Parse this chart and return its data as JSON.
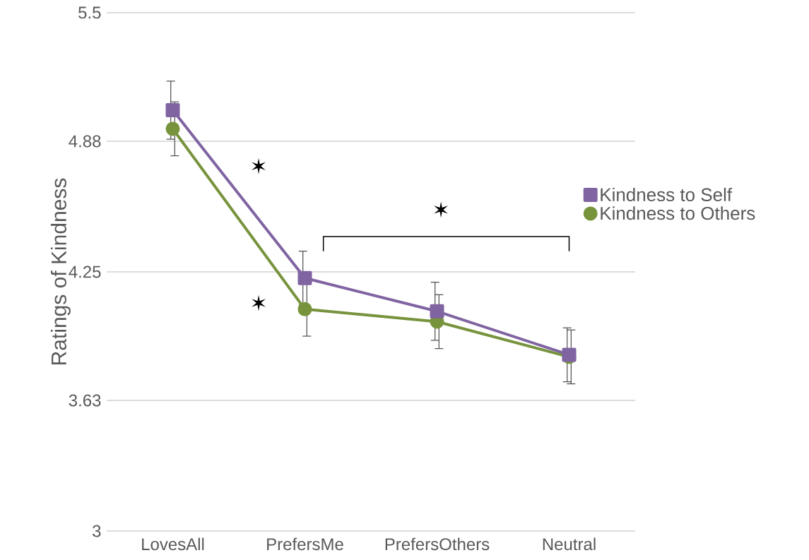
{
  "chart_data": {
    "type": "line",
    "ylabel": "Ratings of Kindness",
    "categories": [
      "LovesAll",
      "PrefersMe",
      "PrefersOthers",
      "Neutral"
    ],
    "series": [
      {
        "name": "Kindness to Self",
        "color": "#8064a2",
        "marker": "square",
        "values": [
          5.03,
          4.22,
          4.06,
          3.85
        ],
        "errors": [
          0.14,
          0.13,
          0.14,
          0.13
        ]
      },
      {
        "name": "Kindness to Others",
        "color": "#77933c",
        "marker": "circle",
        "values": [
          4.94,
          4.07,
          4.01,
          3.84
        ],
        "errors": [
          0.13,
          0.13,
          0.13,
          0.13
        ]
      }
    ],
    "ylim": [
      3,
      5.5
    ],
    "yticks": [
      3,
      3.63,
      4.25,
      4.88,
      5.5
    ],
    "grid": "y",
    "legend": "right",
    "annotations": [
      "✶",
      "✶",
      "✶"
    ]
  }
}
